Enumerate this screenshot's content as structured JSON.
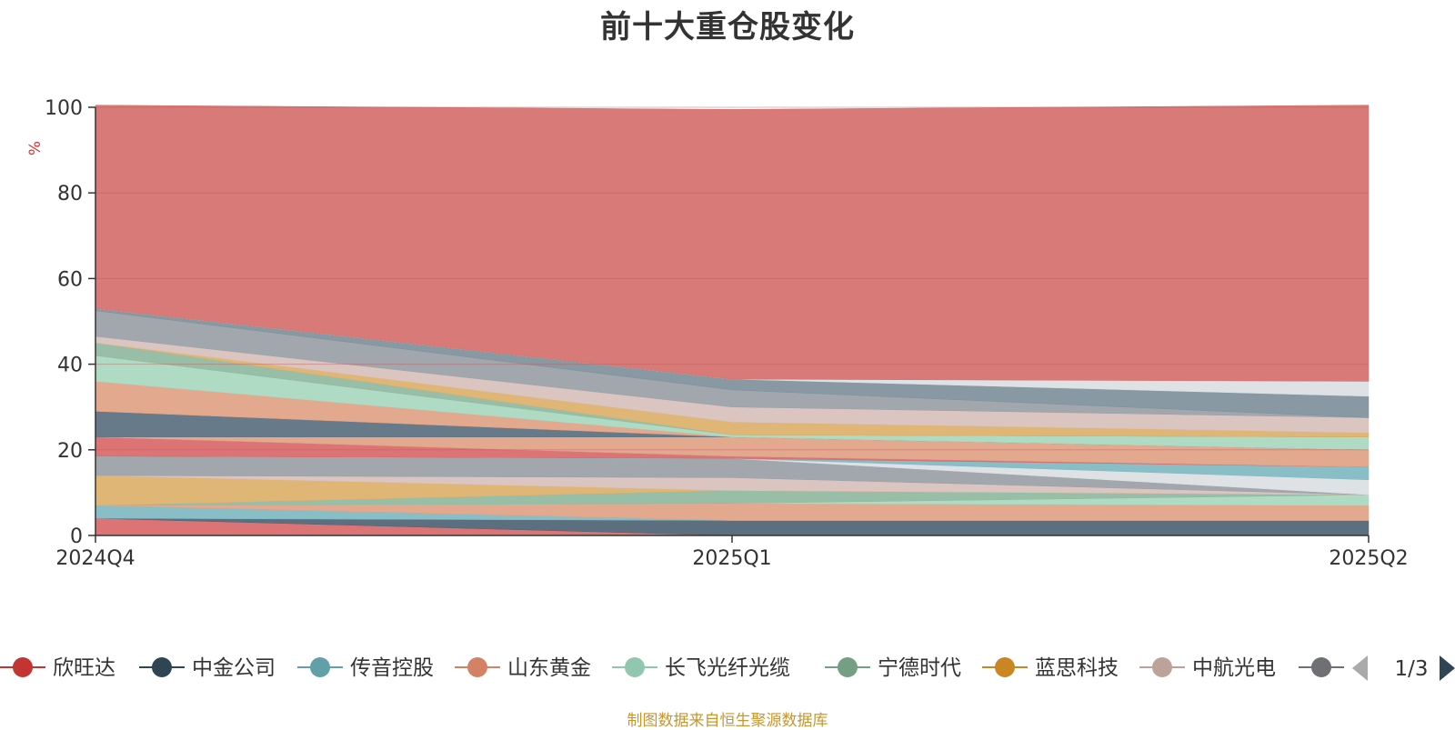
{
  "chart_data": {
    "type": "area",
    "title": "前十大重仓股变化",
    "ylabel": "%",
    "ylim": [
      0,
      100
    ],
    "yticks": [
      "0",
      "20",
      "40",
      "60",
      "80",
      "100"
    ],
    "categories": [
      "2024Q4",
      "2025Q1",
      "2025Q2"
    ],
    "stacked": true,
    "grid": true,
    "legend_position": "bottom",
    "series": [
      {
        "name": "",
        "color": "#d9686a",
        "values": [
          4.0,
          0.0,
          0.0
        ]
      },
      {
        "name": "",
        "color": "#4e6373",
        "values": [
          0.0,
          3.5,
          3.5
        ]
      },
      {
        "name": "",
        "color": "#7fb8c2",
        "values": [
          3.0,
          0.0,
          0.0
        ]
      },
      {
        "name": "",
        "color": "#e0a286",
        "values": [
          0.0,
          4.0,
          3.5
        ]
      },
      {
        "name": "",
        "color": "#a8d8c0",
        "values": [
          0.0,
          0.0,
          2.5
        ]
      },
      {
        "name": "",
        "color": "#8fb8a0",
        "values": [
          0.0,
          3.0,
          0.0
        ]
      },
      {
        "name": "",
        "color": "#dcb06a",
        "values": [
          7.0,
          0.0,
          0.0
        ]
      },
      {
        "name": "",
        "color": "#d8c0bc",
        "values": [
          0.0,
          3.0,
          0.0
        ]
      },
      {
        "name": "",
        "color": "#9aa0a6",
        "values": [
          4.5,
          4.5,
          0.0
        ]
      },
      {
        "name": "",
        "color": "#dcdfe3",
        "values": [
          0.0,
          0.0,
          3.5
        ]
      },
      {
        "name": "",
        "color": "#7fb8c2",
        "values": [
          0.0,
          0.0,
          3.0
        ]
      },
      {
        "name": "",
        "color": "#d9686a",
        "values": [
          4.5,
          0.5,
          0.0
        ]
      },
      {
        "name": "",
        "color": "#e0a286",
        "values": [
          0.0,
          4.5,
          4.0
        ]
      },
      {
        "name": "",
        "color": "#5a6f80",
        "values": [
          6.0,
          0.0,
          0.0
        ]
      },
      {
        "name": "",
        "color": "#e0a286",
        "values": [
          7.0,
          0.0,
          0.0
        ]
      },
      {
        "name": "",
        "color": "#a8d8c0",
        "values": [
          6.0,
          0.5,
          3.0
        ]
      },
      {
        "name": "",
        "color": "#8fb8a0",
        "values": [
          3.0,
          0.0,
          0.0
        ]
      },
      {
        "name": "",
        "color": "#dcb06a",
        "values": [
          0.0,
          3.0,
          1.0
        ]
      },
      {
        "name": "",
        "color": "#d8c0bc",
        "values": [
          1.5,
          3.5,
          3.5
        ]
      },
      {
        "name": "",
        "color": "#9aa0a6",
        "values": [
          6.0,
          4.0,
          0.0
        ]
      },
      {
        "name": "",
        "color": "#7e909c",
        "values": [
          0.5,
          2.5,
          5.0
        ]
      },
      {
        "name": "",
        "color": "#dcdfe3",
        "values": [
          0.0,
          0.0,
          3.5
        ]
      },
      {
        "name": "",
        "color": "#d46f6c",
        "values": [
          47.5,
          63.0,
          64.5
        ]
      }
    ],
    "legend": [
      {
        "name": "欣旺达",
        "color": "#c23531"
      },
      {
        "name": "中金公司",
        "color": "#2f4554"
      },
      {
        "name": "传音控股",
        "color": "#61a0a8"
      },
      {
        "name": "山东黄金",
        "color": "#d48265"
      },
      {
        "name": "长飞光纤光缆",
        "color": "#91c7ae"
      },
      {
        "name": "宁德时代",
        "color": "#749f83"
      },
      {
        "name": "蓝思科技",
        "color": "#ca8622"
      },
      {
        "name": "中航光电",
        "color": "#bda29a"
      },
      {
        "name": "",
        "color": "#6e7074"
      }
    ],
    "legend_page": "1/3"
  },
  "source_note": "制图数据来自恒生聚源数据库",
  "colors": {
    "axis": "#333333",
    "grid": "#c25a5a",
    "ylabel": "#e03030",
    "pager_active": "#2f4554",
    "pager_inactive": "#aaaaaa",
    "source": "#c8962a"
  }
}
